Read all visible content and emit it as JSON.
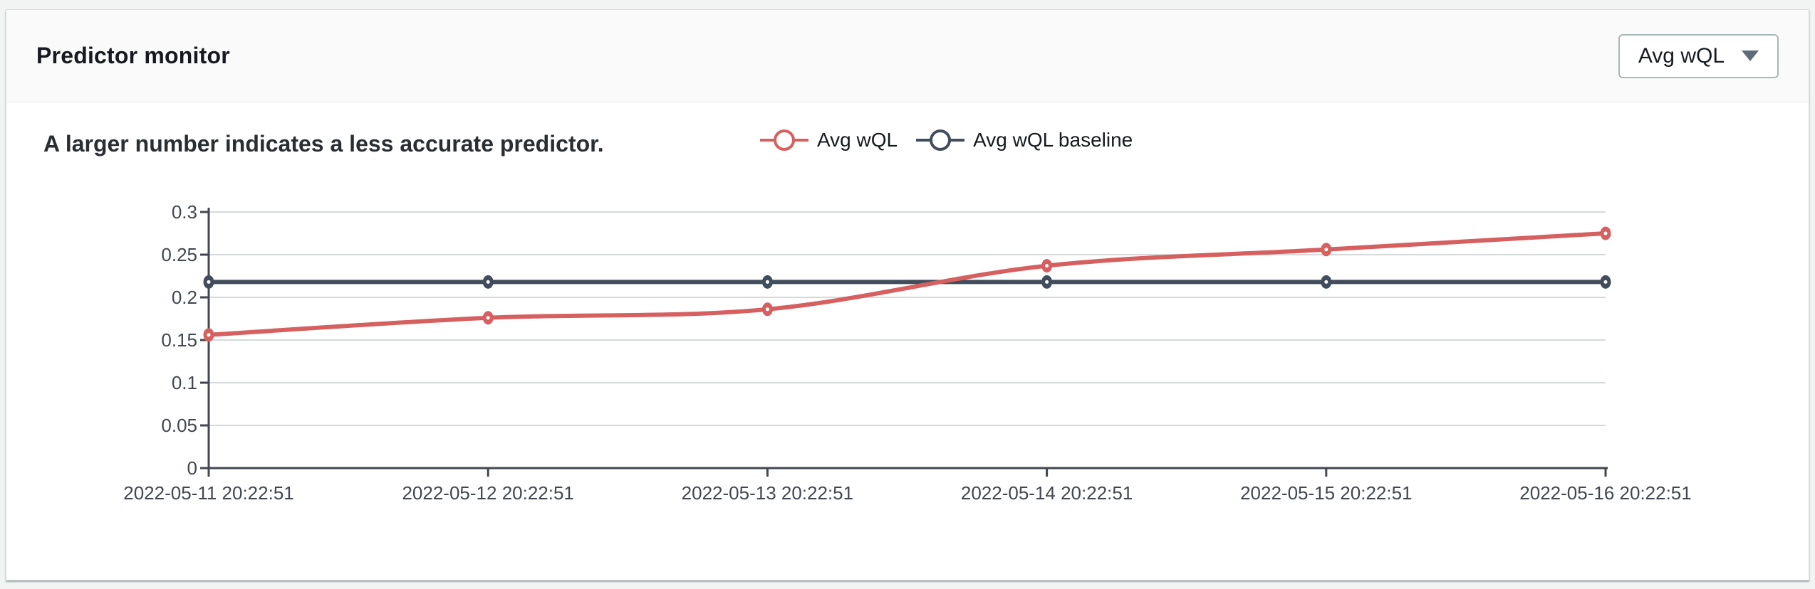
{
  "panel": {
    "title": "Predictor monitor",
    "subtitle": "A larger number indicates a less accurate predictor.",
    "dropdown": {
      "label": "Avg wQL",
      "caret_icon": "chevron-down-icon"
    }
  },
  "legend": [
    {
      "label": "Avg wQL",
      "color": "#d6605f"
    },
    {
      "label": "Avg wQL baseline",
      "color": "#414d5c"
    }
  ],
  "colors": {
    "accent_red": "#d6605f",
    "baseline_dark": "#414d5c",
    "axis": "#424650",
    "grid": "#d5d9d9",
    "header_bg": "#fafafa",
    "page_bg": "#f2f3f3"
  },
  "chart_data": {
    "type": "line",
    "title": "",
    "xlabel": "",
    "ylabel": "",
    "x": [
      "2022-05-11 20:22:51",
      "2022-05-12 20:22:51",
      "2022-05-13 20:22:51",
      "2022-05-14 20:22:51",
      "2022-05-15 20:22:51",
      "2022-05-16 20:22:51"
    ],
    "series": [
      {
        "name": "Avg wQL baseline",
        "color": "#414d5c",
        "smooth": false,
        "values": [
          0.218,
          0.218,
          0.218,
          0.218,
          0.218,
          0.218
        ]
      },
      {
        "name": "Avg wQL",
        "color": "#d6605f",
        "smooth": true,
        "values": [
          0.156,
          0.176,
          0.186,
          0.237,
          0.256,
          0.275
        ]
      }
    ],
    "ylim": [
      0,
      0.3
    ],
    "yticks": [
      {
        "value": 0,
        "label": "0"
      },
      {
        "value": 0.05,
        "label": "0.05"
      },
      {
        "value": 0.1,
        "label": "0.1"
      },
      {
        "value": 0.15,
        "label": "0.15"
      },
      {
        "value": 0.2,
        "label": "0.2"
      },
      {
        "value": 0.25,
        "label": "0.25"
      },
      {
        "value": 0.3,
        "label": "0.3"
      }
    ],
    "grid": true,
    "legend_position": "top"
  }
}
